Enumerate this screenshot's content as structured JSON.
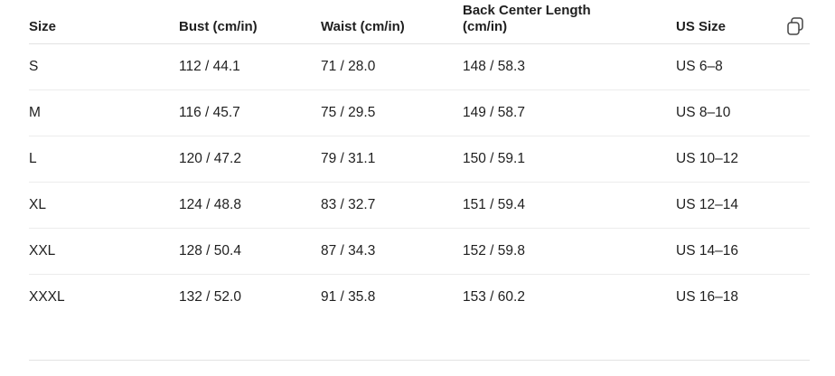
{
  "table": {
    "columns": [
      "Size",
      "Bust (cm/in)",
      "Waist (cm/in)",
      "Back Center Length (cm/in)",
      "US Size"
    ],
    "rows": [
      [
        "S",
        "112 / 44.1",
        "71 / 28.0",
        "148 / 58.3",
        "US 6–8"
      ],
      [
        "M",
        "116 / 45.7",
        "75 / 29.5",
        "149 / 58.7",
        "US 8–10"
      ],
      [
        "L",
        "120 / 47.2",
        "79 / 31.1",
        "150 / 59.1",
        "US 10–12"
      ],
      [
        "XL",
        "124 / 48.8",
        "83 / 32.7",
        "151 / 59.4",
        "US 12–14"
      ],
      [
        "XXL",
        "128 / 50.4",
        "87 / 34.3",
        "152 / 59.8",
        "US 14–16"
      ],
      [
        "XXXL",
        "132 / 52.0",
        "91 / 35.8",
        "153 / 60.2",
        "US 16–18"
      ]
    ]
  }
}
